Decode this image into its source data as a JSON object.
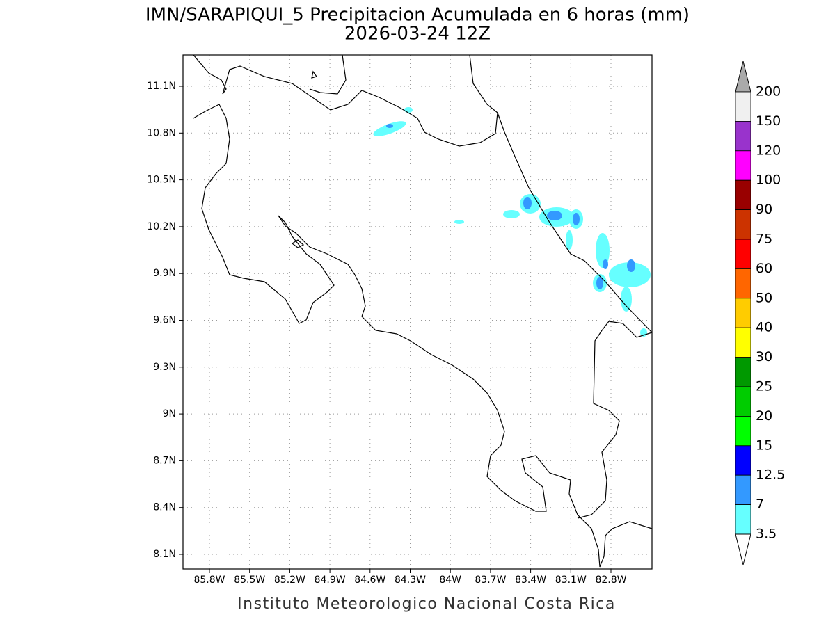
{
  "header": {
    "title": "IMN/SARAPIQUI_5 Precipitacion Acumulada en 6 horas (mm)",
    "subtitle": "2026-03-24 12Z"
  },
  "map": {
    "lat_labels": [
      "11.1N",
      "10.8N",
      "10.5N",
      "10.2N",
      "9.9N",
      "9.6N",
      "9.3N",
      "9N",
      "8.7N",
      "8.4N",
      "8.1N"
    ],
    "lon_labels": [
      "85.8W",
      "85.5W",
      "85.2W",
      "84.9W",
      "84.6W",
      "84.3W",
      "84W",
      "83.7W",
      "83.4W",
      "83.1W",
      "82.8W"
    ]
  },
  "colorbar": {
    "labels": [
      200,
      150,
      120,
      100,
      90,
      75,
      60,
      50,
      40,
      30,
      25,
      20,
      15,
      12.5,
      7,
      3.5
    ],
    "colors": [
      "#f0f0f0",
      "#9933cc",
      "#ff00ff",
      "#990000",
      "#cc3300",
      "#ff0000",
      "#ff6600",
      "#ffcc00",
      "#ffff00",
      "#009900",
      "#00cc00",
      "#00ff00",
      "#0000ff",
      "#3399ff",
      "#66ffff"
    ],
    "over_color": "#aaaaaa",
    "under_color": "#ffffff"
  },
  "footer": "Instituto Meteorologico Nacional Costa Rica"
}
